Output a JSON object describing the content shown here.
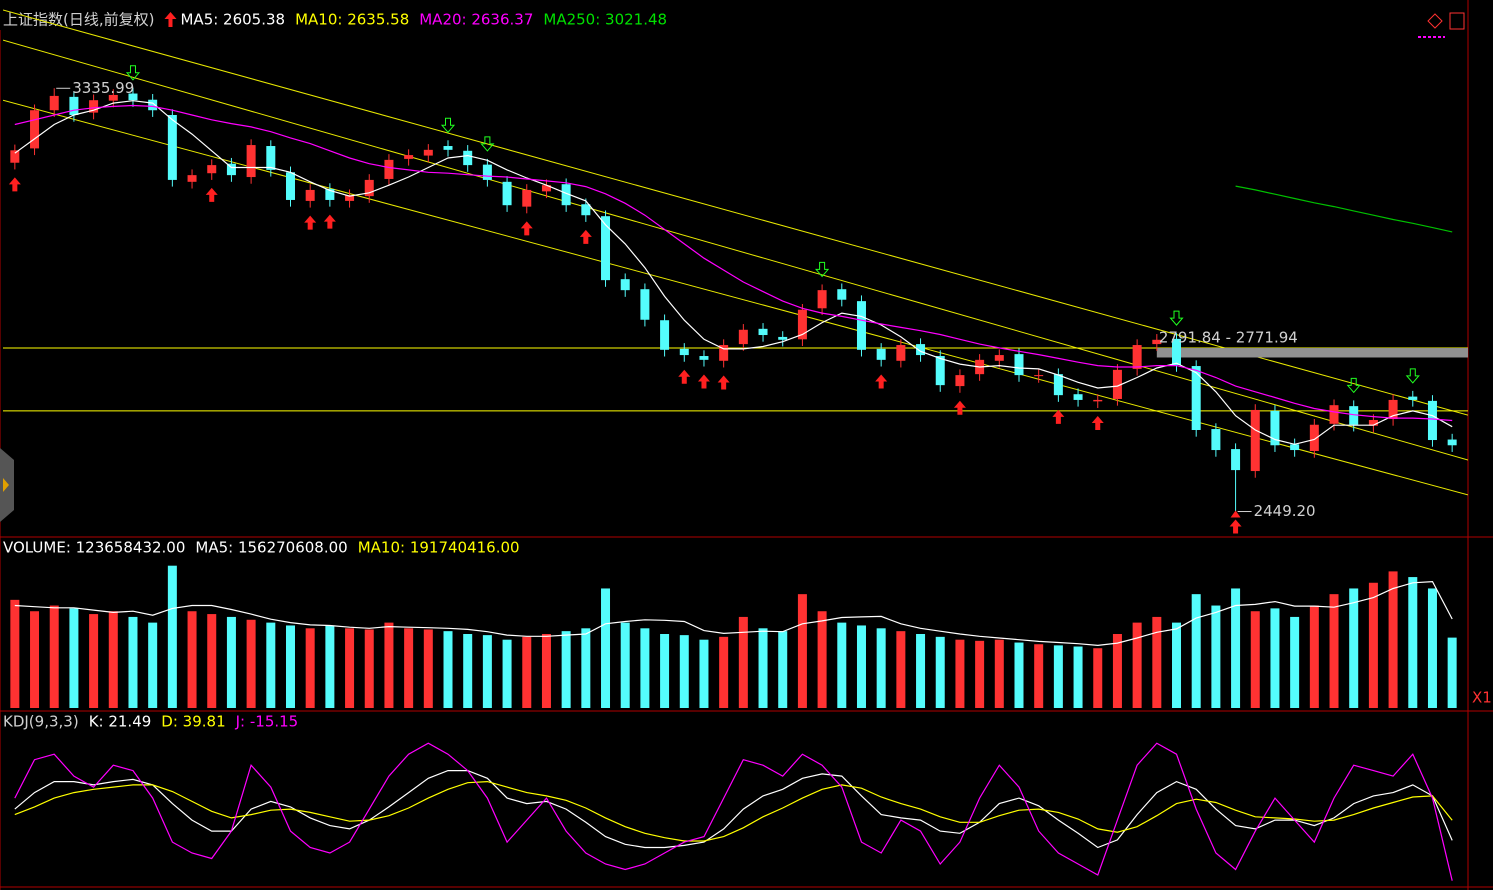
{
  "chart_data": [
    {
      "type": "candlestick",
      "title": "上证指数(日线,前复权)",
      "legend": [
        {
          "label": "MA5: 2605.38",
          "color": "#ffffff"
        },
        {
          "label": "MA10: 2635.58",
          "color": "#ffff00"
        },
        {
          "label": "MA20: 2636.37",
          "color": "#ff00ff"
        },
        {
          "label": "MA250: 3021.48",
          "color": "#00e000"
        }
      ],
      "up_color": "#ff3232",
      "down_color": "#54fcfc",
      "open": [
        3180,
        3210,
        3290,
        3318,
        3285,
        3310,
        3325,
        3312,
        3280,
        3140,
        3158,
        3178,
        3150,
        3215,
        3160,
        3100,
        3125,
        3100,
        3110,
        3146,
        3188,
        3195,
        3215,
        3205,
        3176,
        3140,
        3088,
        3120,
        3135,
        3093,
        3068,
        2936,
        2915,
        2850,
        2790,
        2775,
        2765,
        2800,
        2832,
        2815,
        2810,
        2875,
        2915,
        2890,
        2790,
        2765,
        2800,
        2775,
        2712,
        2737,
        2765,
        2779,
        2733,
        2737,
        2695,
        2680,
        2685,
        2748,
        2800,
        2811,
        2754,
        2622,
        2580,
        2534,
        2660,
        2590,
        2576,
        2633,
        2670,
        2629,
        2643,
        2690,
        2681,
        2600
      ],
      "high": [
        3218,
        3302,
        3335.99,
        3330,
        3323,
        3334,
        3337,
        3324,
        3292,
        3166,
        3187,
        3190,
        3229,
        3227,
        3172,
        3135,
        3137,
        3124,
        3156,
        3198,
        3208,
        3219,
        3227,
        3217,
        3188,
        3152,
        3135,
        3145,
        3147,
        3105,
        3080,
        2948,
        2927,
        2862,
        2802,
        2787,
        2810,
        2842,
        2844,
        2827,
        2884,
        2925,
        2927,
        2902,
        2802,
        2810,
        2812,
        2787,
        2747,
        2779,
        2789,
        2791,
        2747,
        2749,
        2707,
        2695,
        2758,
        2810,
        2821,
        2823,
        2766,
        2634,
        2592,
        2674,
        2672,
        2602,
        2643,
        2684,
        2682,
        2653,
        2695,
        2702,
        2693,
        2612
      ],
      "low": [
        3166,
        3196,
        3276,
        3266,
        3271,
        3296,
        3297,
        3276,
        3130,
        3126,
        3144,
        3140,
        3136,
        3151,
        3088,
        3086,
        3088,
        3086,
        3096,
        3132,
        3174,
        3181,
        3193,
        3161,
        3130,
        3077,
        3074,
        3106,
        3077,
        3056,
        2920,
        2899,
        2837,
        2774,
        2763,
        2753,
        2751,
        2786,
        2805,
        2795,
        2796,
        2861,
        2879,
        2774,
        2753,
        2751,
        2763,
        2700,
        2698,
        2723,
        2751,
        2721,
        2719,
        2679,
        2669,
        2666,
        2671,
        2734,
        2786,
        2742,
        2606,
        2564,
        2449.2,
        2520,
        2574,
        2564,
        2562,
        2619,
        2617,
        2615,
        2629,
        2669,
        2585,
        2574
      ],
      "close": [
        3206,
        3290,
        3320,
        3280,
        3311,
        3322,
        3311,
        3290,
        3144,
        3154,
        3175,
        3154,
        3217,
        3165,
        3102,
        3123,
        3102,
        3112,
        3144,
        3186,
        3196,
        3207,
        3207,
        3175,
        3144,
        3091,
        3123,
        3133,
        3091,
        3070,
        2934,
        2913,
        2851,
        2788,
        2777,
        2767,
        2798,
        2830,
        2819,
        2809,
        2872,
        2913,
        2893,
        2788,
        2767,
        2798,
        2777,
        2714,
        2735,
        2767,
        2777,
        2735,
        2735,
        2693,
        2683,
        2683,
        2746,
        2798,
        2809,
        2756,
        2620,
        2578,
        2536,
        2662,
        2588,
        2578,
        2631,
        2672,
        2631,
        2641,
        2683,
        2683,
        2599,
        2588
      ],
      "series": [
        {
          "color": "#ffffff",
          "values": [
            3200,
            3230,
            3260,
            3280,
            3290,
            3305,
            3310,
            3305,
            3270,
            3240,
            3205,
            3170,
            3170,
            3170,
            3160,
            3140,
            3122,
            3110,
            3117,
            3133,
            3150,
            3170,
            3190,
            3195,
            3185,
            3165,
            3148,
            3133,
            3116,
            3100,
            3050,
            3010,
            2960,
            2900,
            2850,
            2810,
            2790,
            2790,
            2795,
            2805,
            2820,
            2845,
            2865,
            2858,
            2840,
            2815,
            2785,
            2770,
            2758,
            2752,
            2755,
            2750,
            2748,
            2735,
            2720,
            2708,
            2712,
            2730,
            2750,
            2760,
            2740,
            2700,
            2650,
            2620,
            2600,
            2590,
            2600,
            2630,
            2630,
            2630,
            2650,
            2660,
            2650,
            2627
          ]
        },
        {
          "color": "#ff00ff",
          "values": [
            3260,
            3270,
            3280,
            3290,
            3295,
            3298,
            3300,
            3298,
            3290,
            3280,
            3270,
            3262,
            3255,
            3245,
            3232,
            3220,
            3205,
            3190,
            3178,
            3170,
            3165,
            3160,
            3158,
            3155,
            3152,
            3150,
            3146,
            3142,
            3138,
            3130,
            3115,
            3095,
            3070,
            3040,
            3010,
            2980,
            2955,
            2930,
            2910,
            2890,
            2875,
            2865,
            2858,
            2850,
            2842,
            2835,
            2828,
            2820,
            2810,
            2800,
            2792,
            2785,
            2778,
            2770,
            2762,
            2755,
            2752,
            2752,
            2755,
            2755,
            2745,
            2730,
            2712,
            2700,
            2688,
            2676,
            2665,
            2658,
            2652,
            2648,
            2645,
            2645,
            2643,
            2640
          ]
        },
        {
          "color": "#00c000",
          "values": [
            null,
            null,
            null,
            null,
            null,
            null,
            null,
            null,
            null,
            null,
            null,
            null,
            null,
            null,
            null,
            null,
            null,
            null,
            null,
            null,
            null,
            null,
            null,
            null,
            null,
            null,
            null,
            null,
            null,
            null,
            null,
            null,
            null,
            null,
            null,
            null,
            null,
            null,
            null,
            null,
            null,
            null,
            null,
            null,
            null,
            null,
            null,
            null,
            null,
            null,
            null,
            null,
            null,
            null,
            null,
            null,
            null,
            null,
            null,
            null,
            null,
            null,
            3131,
            3123,
            3114,
            3105,
            3096,
            3088,
            3079,
            3070,
            3061,
            3053,
            3044,
            3035
          ]
        }
      ],
      "ylim": [
        2400,
        3500
      ],
      "hlines": [
        2791.84,
        2660
      ],
      "trendlines": [
        [
          3500,
          2651
        ],
        [
          3437,
          2557
        ],
        [
          3311,
          2484
        ]
      ],
      "band": [
        2791.84,
        2771.94
      ],
      "band_label": "2791.84 - 2771.94",
      "annotations": [
        {
          "value": 3335.99,
          "label": "3335.99"
        },
        {
          "value": 2449.2,
          "label": "2449.20"
        }
      ],
      "buy_signals": [
        0,
        10,
        15,
        16,
        26,
        29,
        34,
        35,
        36,
        44,
        48,
        53,
        55,
        62
      ],
      "sell_signals": [
        6,
        22,
        24,
        41,
        59,
        68,
        71
      ]
    },
    {
      "type": "bar",
      "legend": [
        {
          "label": "VOLUME: 123658432.00",
          "color": "#ffffff"
        },
        {
          "label": "MA5: 156270608.00",
          "color": "#ffffff"
        },
        {
          "label": "MA10: 191740416.00",
          "color": "#ffff00"
        }
      ],
      "values": [
        190,
        170,
        180,
        175,
        165,
        170,
        160,
        150,
        250,
        170,
        165,
        160,
        155,
        150,
        145,
        140,
        145,
        140,
        138,
        150,
        140,
        138,
        135,
        130,
        128,
        120,
        125,
        130,
        135,
        140,
        210,
        150,
        140,
        130,
        128,
        120,
        125,
        160,
        140,
        135,
        200,
        170,
        150,
        145,
        140,
        135,
        130,
        125,
        120,
        118,
        120,
        115,
        112,
        110,
        108,
        105,
        130,
        150,
        160,
        150,
        200,
        180,
        210,
        170,
        175,
        160,
        180,
        200,
        210,
        220,
        240,
        230,
        210,
        123.66
      ],
      "series": [
        {
          "color": "#ffffff",
          "values": [
            180,
            178,
            176,
            176,
            172,
            168,
            170,
            163,
            175,
            180,
            180,
            173,
            165,
            156,
            150,
            146,
            145,
            142,
            140,
            143,
            142,
            141,
            140,
            138,
            134,
            128,
            126,
            126,
            128,
            130,
            148,
            152,
            155,
            154,
            152,
            136,
            131,
            133,
            135,
            134,
            148,
            153,
            159,
            160,
            161,
            148,
            140,
            135,
            130,
            126,
            123,
            120,
            117,
            115,
            113,
            110,
            114,
            123,
            133,
            139,
            158,
            168,
            180,
            182,
            187,
            179,
            179,
            177,
            185,
            194,
            210,
            220,
            222,
            156.27
          ]
        }
      ],
      "ylim": [
        0,
        260
      ],
      "scale_button": "X1"
    },
    {
      "type": "line",
      "title": "KDJ(9,3,3)",
      "legend": [
        {
          "label": "K: 21.49",
          "color": "#ffffff"
        },
        {
          "label": "D: 39.81",
          "color": "#ffff00"
        },
        {
          "label": "J: -15.15",
          "color": "#ff00ff"
        }
      ],
      "series": [
        {
          "color": "#ffffff",
          "values": [
            50,
            65,
            75,
            75,
            72,
            75,
            77,
            72,
            55,
            40,
            30,
            30,
            50,
            57,
            52,
            42,
            35,
            32,
            40,
            52,
            65,
            78,
            85,
            85,
            78,
            60,
            55,
            57,
            50,
            38,
            25,
            18,
            15,
            15,
            17,
            20,
            32,
            50,
            62,
            68,
            78,
            82,
            80,
            62,
            45,
            42,
            40,
            30,
            28,
            38,
            55,
            60,
            53,
            40,
            28,
            15,
            22,
            45,
            65,
            75,
            68,
            50,
            35,
            32,
            40,
            40,
            35,
            42,
            55,
            62,
            65,
            72,
            62,
            21.49
          ]
        },
        {
          "color": "#ffff00",
          "values": [
            45,
            52,
            60,
            65,
            68,
            70,
            72,
            72,
            66,
            57,
            48,
            42,
            45,
            49,
            50,
            47,
            43,
            39,
            40,
            44,
            51,
            60,
            68,
            74,
            75,
            70,
            65,
            62,
            58,
            51,
            42,
            34,
            28,
            24,
            21,
            21,
            25,
            33,
            43,
            51,
            60,
            68,
            72,
            69,
            61,
            55,
            50,
            43,
            38,
            38,
            44,
            49,
            50,
            47,
            41,
            32,
            29,
            34,
            44,
            55,
            59,
            56,
            49,
            43,
            42,
            41,
            39,
            40,
            45,
            51,
            56,
            61,
            62,
            39.81
          ]
        },
        {
          "color": "#ff00ff",
          "values": [
            60,
            95,
            100,
            80,
            70,
            90,
            85,
            60,
            20,
            10,
            5,
            30,
            90,
            70,
            30,
            15,
            10,
            20,
            50,
            80,
            100,
            110,
            100,
            85,
            60,
            20,
            40,
            60,
            30,
            10,
            0,
            -5,
            0,
            10,
            20,
            25,
            60,
            95,
            90,
            80,
            100,
            90,
            70,
            20,
            10,
            40,
            30,
            0,
            20,
            60,
            90,
            70,
            30,
            10,
            0,
            -10,
            40,
            90,
            110,
            100,
            50,
            10,
            -5,
            30,
            60,
            40,
            20,
            60,
            90,
            85,
            80,
            100,
            60,
            -15.15
          ]
        }
      ],
      "ylim": [
        -20,
        122
      ]
    }
  ]
}
